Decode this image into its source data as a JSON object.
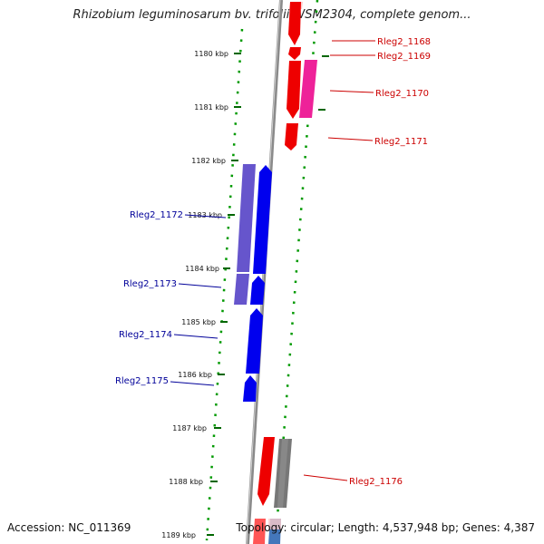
{
  "title": "Rhizobium leguminosarum bv. trifolii WSM2304, complete genom...",
  "accession": "Accession: NC_011369",
  "topology": "Topology: circular; Length: 4,537,948 bp; Genes: 4,387",
  "ruler": {
    "unit": "kbp",
    "ticks": [
      "1180 kbp",
      "1181 kbp",
      "1182 kbp",
      "1183 kbp",
      "1184 kbp",
      "1185 kbp",
      "1186 kbp",
      "1187 kbp",
      "1188 kbp",
      "1189 kbp"
    ]
  },
  "colors": {
    "forward_label": "#cc0000",
    "reverse_label": "#000099",
    "backbone": "#888888",
    "tick": "#006600",
    "dotted_guides": "#009900"
  },
  "genes": [
    {
      "label": "Rleg2_1168",
      "strand": "forward"
    },
    {
      "label": "Rleg2_1169",
      "strand": "forward"
    },
    {
      "label": "Rleg2_1170",
      "strand": "forward"
    },
    {
      "label": "Rleg2_1171",
      "strand": "forward"
    },
    {
      "label": "Rleg2_1172",
      "strand": "reverse"
    },
    {
      "label": "Rleg2_1173",
      "strand": "reverse"
    },
    {
      "label": "Rleg2_1174",
      "strand": "reverse"
    },
    {
      "label": "Rleg2_1175",
      "strand": "reverse"
    },
    {
      "label": "Rleg2_1176",
      "strand": "forward"
    }
  ]
}
